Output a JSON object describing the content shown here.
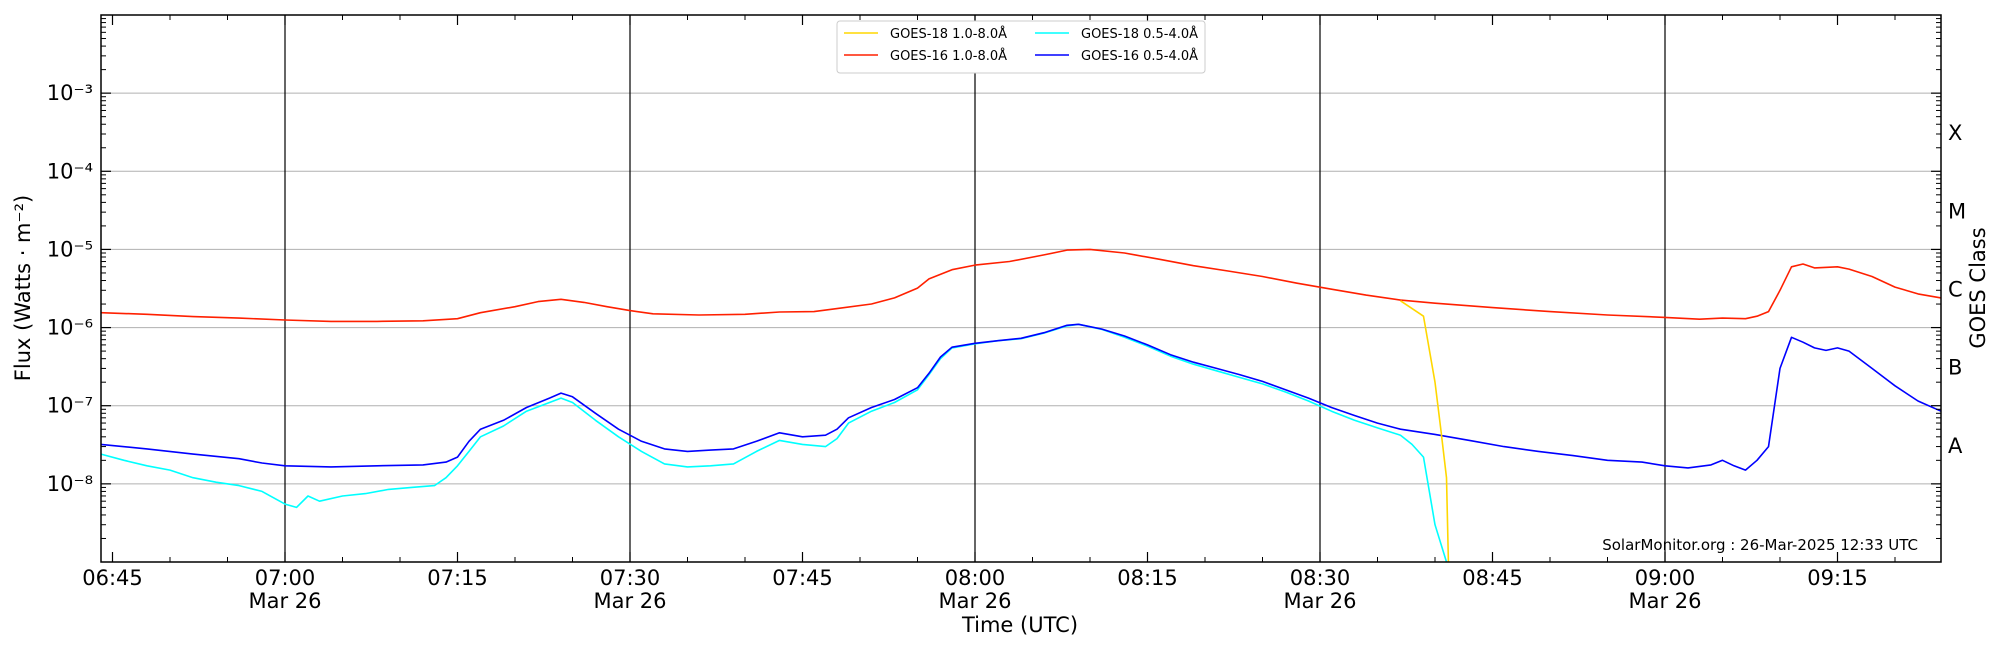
{
  "chart_data": {
    "type": "line",
    "xlabel": "Time (UTC)",
    "ylabel": "Flux (Watts · m⁻²)",
    "ylabel_right": "GOES Class",
    "x_range": [
      "06:44",
      "09:24"
    ],
    "y_range": [
      1e-09,
      0.01
    ],
    "y_scale": "log",
    "y_ticks": [
      {
        "value": 1e-08,
        "label": "10⁻⁸"
      },
      {
        "value": 1e-07,
        "label": "10⁻⁷"
      },
      {
        "value": 1e-06,
        "label": "10⁻⁶"
      },
      {
        "value": 1e-05,
        "label": "10⁻⁵"
      },
      {
        "value": 0.0001,
        "label": "10⁻⁴"
      },
      {
        "value": 0.001,
        "label": "10⁻³"
      }
    ],
    "x_ticks": [
      {
        "time": "06:45",
        "label": "06:45",
        "date": "",
        "major": false
      },
      {
        "time": "07:00",
        "label": "07:00",
        "date": "Mar 26",
        "major": true
      },
      {
        "time": "07:15",
        "label": "07:15",
        "date": "",
        "major": false
      },
      {
        "time": "07:30",
        "label": "07:30",
        "date": "Mar 26",
        "major": true
      },
      {
        "time": "07:45",
        "label": "07:45",
        "date": "",
        "major": false
      },
      {
        "time": "08:00",
        "label": "08:00",
        "date": "Mar 26",
        "major": true
      },
      {
        "time": "08:15",
        "label": "08:15",
        "date": "",
        "major": false
      },
      {
        "time": "08:30",
        "label": "08:30",
        "date": "Mar 26",
        "major": true
      },
      {
        "time": "08:45",
        "label": "08:45",
        "date": "",
        "major": false
      },
      {
        "time": "09:00",
        "label": "09:00",
        "date": "Mar 26",
        "major": true
      },
      {
        "time": "09:15",
        "label": "09:15",
        "date": "",
        "major": false
      }
    ],
    "goes_classes": [
      {
        "label": "X",
        "value": 0.000316
      },
      {
        "label": "M",
        "value": 3.16e-05
      },
      {
        "label": "C",
        "value": 3.16e-06
      },
      {
        "label": "B",
        "value": 3.16e-07
      },
      {
        "label": "A",
        "value": 3.16e-08
      }
    ],
    "grid": true,
    "legend_position": "top-center",
    "credit": "SolarMonitor.org : 26-Mar-2025 12:33 UTC",
    "series": [
      {
        "name": "GOES-18 1.0-8.0Å",
        "color": "#ffd700",
        "points": [
          [
            "08:37",
            2.2e-06
          ],
          [
            "08:39",
            1.4e-06
          ],
          [
            "08:40",
            2e-07
          ],
          [
            "08:40:30",
            5e-08
          ],
          [
            "08:41",
            1.2e-08
          ],
          [
            "08:41:10",
            1e-09
          ]
        ]
      },
      {
        "name": "GOES-16 1.0-8.0Å",
        "color": "#ff2000",
        "points": [
          [
            "06:44",
            1.55e-06
          ],
          [
            "06:48",
            1.48e-06
          ],
          [
            "06:52",
            1.38e-06
          ],
          [
            "06:56",
            1.32e-06
          ],
          [
            "07:00",
            1.25e-06
          ],
          [
            "07:04",
            1.2e-06
          ],
          [
            "07:08",
            1.2e-06
          ],
          [
            "07:12",
            1.22e-06
          ],
          [
            "07:15",
            1.3e-06
          ],
          [
            "07:17",
            1.55e-06
          ],
          [
            "07:20",
            1.85e-06
          ],
          [
            "07:22",
            2.15e-06
          ],
          [
            "07:24",
            2.3e-06
          ],
          [
            "07:26",
            2.1e-06
          ],
          [
            "07:28",
            1.85e-06
          ],
          [
            "07:30",
            1.65e-06
          ],
          [
            "07:32",
            1.5e-06
          ],
          [
            "07:36",
            1.45e-06
          ],
          [
            "07:40",
            1.48e-06
          ],
          [
            "07:43",
            1.58e-06
          ],
          [
            "07:46",
            1.6e-06
          ],
          [
            "07:48",
            1.75e-06
          ],
          [
            "07:51",
            2e-06
          ],
          [
            "07:53",
            2.4e-06
          ],
          [
            "07:55",
            3.2e-06
          ],
          [
            "07:56",
            4.2e-06
          ],
          [
            "07:58",
            5.5e-06
          ],
          [
            "08:00",
            6.3e-06
          ],
          [
            "08:03",
            7e-06
          ],
          [
            "08:06",
            8.5e-06
          ],
          [
            "08:08",
            9.8e-06
          ],
          [
            "08:10",
            1e-05
          ],
          [
            "08:13",
            9e-06
          ],
          [
            "08:16",
            7.5e-06
          ],
          [
            "08:19",
            6.2e-06
          ],
          [
            "08:22",
            5.3e-06
          ],
          [
            "08:25",
            4.5e-06
          ],
          [
            "08:28",
            3.7e-06
          ],
          [
            "08:31",
            3.1e-06
          ],
          [
            "08:34",
            2.6e-06
          ],
          [
            "08:37",
            2.25e-06
          ],
          [
            "08:40",
            2.05e-06
          ],
          [
            "08:45",
            1.8e-06
          ],
          [
            "08:50",
            1.6e-06
          ],
          [
            "08:55",
            1.45e-06
          ],
          [
            "09:00",
            1.35e-06
          ],
          [
            "09:03",
            1.28e-06
          ],
          [
            "09:05",
            1.32e-06
          ],
          [
            "09:07",
            1.3e-06
          ],
          [
            "09:08",
            1.4e-06
          ],
          [
            "09:09",
            1.6e-06
          ],
          [
            "09:10",
            3e-06
          ],
          [
            "09:11",
            6e-06
          ],
          [
            "09:12",
            6.5e-06
          ],
          [
            "09:13",
            5.8e-06
          ],
          [
            "09:15",
            6e-06
          ],
          [
            "09:16",
            5.6e-06
          ],
          [
            "09:18",
            4.5e-06
          ],
          [
            "09:20",
            3.3e-06
          ],
          [
            "09:22",
            2.7e-06
          ],
          [
            "09:24",
            2.4e-06
          ]
        ]
      },
      {
        "name": "GOES-18 0.5-4.0Å",
        "color": "#00ffff",
        "points": [
          [
            "06:44",
            2.4e-08
          ],
          [
            "06:46",
            2e-08
          ],
          [
            "06:48",
            1.7e-08
          ],
          [
            "06:50",
            1.5e-08
          ],
          [
            "06:52",
            1.2e-08
          ],
          [
            "06:54",
            1.05e-08
          ],
          [
            "06:56",
            9.5e-09
          ],
          [
            "06:58",
            8e-09
          ],
          [
            "07:00",
            5.5e-09
          ],
          [
            "07:01",
            5e-09
          ],
          [
            "07:02",
            7e-09
          ],
          [
            "07:03",
            6e-09
          ],
          [
            "07:05",
            7e-09
          ],
          [
            "07:07",
            7.5e-09
          ],
          [
            "07:09",
            8.5e-09
          ],
          [
            "07:11",
            9e-09
          ],
          [
            "07:13",
            9.5e-09
          ],
          [
            "07:14",
            1.2e-08
          ],
          [
            "07:15",
            1.7e-08
          ],
          [
            "07:16",
            2.6e-08
          ],
          [
            "07:17",
            4e-08
          ],
          [
            "07:19",
            5.5e-08
          ],
          [
            "07:21",
            8.5e-08
          ],
          [
            "07:23",
            1.1e-07
          ],
          [
            "07:24",
            1.25e-07
          ],
          [
            "07:25",
            1.1e-07
          ],
          [
            "07:27",
            6.5e-08
          ],
          [
            "07:29",
            4e-08
          ],
          [
            "07:31",
            2.6e-08
          ],
          [
            "07:33",
            1.8e-08
          ],
          [
            "07:35",
            1.65e-08
          ],
          [
            "07:37",
            1.7e-08
          ],
          [
            "07:39",
            1.8e-08
          ],
          [
            "07:41",
            2.6e-08
          ],
          [
            "07:43",
            3.6e-08
          ],
          [
            "07:45",
            3.2e-08
          ],
          [
            "07:47",
            3e-08
          ],
          [
            "07:48",
            3.8e-08
          ],
          [
            "07:49",
            6e-08
          ],
          [
            "07:51",
            8.5e-08
          ],
          [
            "07:53",
            1.1e-07
          ],
          [
            "07:55",
            1.6e-07
          ],
          [
            "07:56",
            2.5e-07
          ],
          [
            "07:57",
            4e-07
          ],
          [
            "07:58",
            5.5e-07
          ],
          [
            "08:00",
            6.2e-07
          ],
          [
            "08:02",
            6.8e-07
          ],
          [
            "08:04",
            7.2e-07
          ],
          [
            "08:06",
            8.5e-07
          ],
          [
            "08:08",
            1.05e-06
          ],
          [
            "08:09",
            1.1e-06
          ],
          [
            "08:11",
            9.5e-07
          ],
          [
            "08:13",
            7.5e-07
          ],
          [
            "08:15",
            5.8e-07
          ],
          [
            "08:17",
            4.3e-07
          ],
          [
            "08:19",
            3.4e-07
          ],
          [
            "08:21",
            2.8e-07
          ],
          [
            "08:23",
            2.3e-07
          ],
          [
            "08:25",
            1.9e-07
          ],
          [
            "08:27",
            1.5e-07
          ],
          [
            "08:29",
            1.15e-07
          ],
          [
            "08:31",
            8.5e-08
          ],
          [
            "08:33",
            6.5e-08
          ],
          [
            "08:35",
            5.2e-08
          ],
          [
            "08:37",
            4.2e-08
          ],
          [
            "08:38",
            3.2e-08
          ],
          [
            "08:39",
            2.2e-08
          ],
          [
            "08:40",
            3e-09
          ],
          [
            "08:41",
            1e-09
          ]
        ]
      },
      {
        "name": "GOES-16 0.5-4.0Å",
        "color": "#0000ff",
        "points": [
          [
            "06:44",
            3.2e-08
          ],
          [
            "06:48",
            2.8e-08
          ],
          [
            "06:52",
            2.4e-08
          ],
          [
            "06:56",
            2.1e-08
          ],
          [
            "06:58",
            1.85e-08
          ],
          [
            "07:00",
            1.7e-08
          ],
          [
            "07:04",
            1.65e-08
          ],
          [
            "07:08",
            1.7e-08
          ],
          [
            "07:12",
            1.75e-08
          ],
          [
            "07:14",
            1.9e-08
          ],
          [
            "07:15",
            2.2e-08
          ],
          [
            "07:16",
            3.5e-08
          ],
          [
            "07:17",
            5e-08
          ],
          [
            "07:19",
            6.5e-08
          ],
          [
            "07:21",
            9.5e-08
          ],
          [
            "07:23",
            1.25e-07
          ],
          [
            "07:24",
            1.45e-07
          ],
          [
            "07:25",
            1.3e-07
          ],
          [
            "07:27",
            8e-08
          ],
          [
            "07:29",
            5e-08
          ],
          [
            "07:31",
            3.5e-08
          ],
          [
            "07:33",
            2.8e-08
          ],
          [
            "07:35",
            2.6e-08
          ],
          [
            "07:37",
            2.7e-08
          ],
          [
            "07:39",
            2.8e-08
          ],
          [
            "07:41",
            3.5e-08
          ],
          [
            "07:43",
            4.5e-08
          ],
          [
            "07:45",
            4e-08
          ],
          [
            "07:47",
            4.2e-08
          ],
          [
            "07:48",
            5e-08
          ],
          [
            "07:49",
            7e-08
          ],
          [
            "07:51",
            9.5e-08
          ],
          [
            "07:53",
            1.2e-07
          ],
          [
            "07:55",
            1.7e-07
          ],
          [
            "07:56",
            2.6e-07
          ],
          [
            "07:57",
            4.2e-07
          ],
          [
            "07:58",
            5.6e-07
          ],
          [
            "08:00",
            6.3e-07
          ],
          [
            "08:02",
            6.8e-07
          ],
          [
            "08:04",
            7.3e-07
          ],
          [
            "08:06",
            8.6e-07
          ],
          [
            "08:08",
            1.07e-06
          ],
          [
            "08:09",
            1.1e-06
          ],
          [
            "08:11",
            9.6e-07
          ],
          [
            "08:13",
            7.8e-07
          ],
          [
            "08:15",
            6e-07
          ],
          [
            "08:17",
            4.5e-07
          ],
          [
            "08:19",
            3.6e-07
          ],
          [
            "08:21",
            3e-07
          ],
          [
            "08:23",
            2.5e-07
          ],
          [
            "08:25",
            2.05e-07
          ],
          [
            "08:27",
            1.6e-07
          ],
          [
            "08:29",
            1.25e-07
          ],
          [
            "08:31",
            9.5e-08
          ],
          [
            "08:33",
            7.5e-08
          ],
          [
            "08:35",
            6e-08
          ],
          [
            "08:37",
            5e-08
          ],
          [
            "08:40",
            4.3e-08
          ],
          [
            "08:43",
            3.6e-08
          ],
          [
            "08:46",
            3e-08
          ],
          [
            "08:49",
            2.6e-08
          ],
          [
            "08:52",
            2.3e-08
          ],
          [
            "08:55",
            2e-08
          ],
          [
            "08:58",
            1.9e-08
          ],
          [
            "09:00",
            1.7e-08
          ],
          [
            "09:02",
            1.6e-08
          ],
          [
            "09:04",
            1.75e-08
          ],
          [
            "09:05",
            2e-08
          ],
          [
            "09:06",
            1.7e-08
          ],
          [
            "09:07",
            1.5e-08
          ],
          [
            "09:08",
            2e-08
          ],
          [
            "09:09",
            3e-08
          ],
          [
            "09:10",
            3e-07
          ],
          [
            "09:11",
            7.5e-07
          ],
          [
            "09:12",
            6.5e-07
          ],
          [
            "09:13",
            5.5e-07
          ],
          [
            "09:14",
            5.1e-07
          ],
          [
            "09:15",
            5.5e-07
          ],
          [
            "09:16",
            5e-07
          ],
          [
            "09:18",
            3e-07
          ],
          [
            "09:20",
            1.8e-07
          ],
          [
            "09:22",
            1.15e-07
          ],
          [
            "09:24",
            8.5e-08
          ]
        ]
      }
    ]
  }
}
